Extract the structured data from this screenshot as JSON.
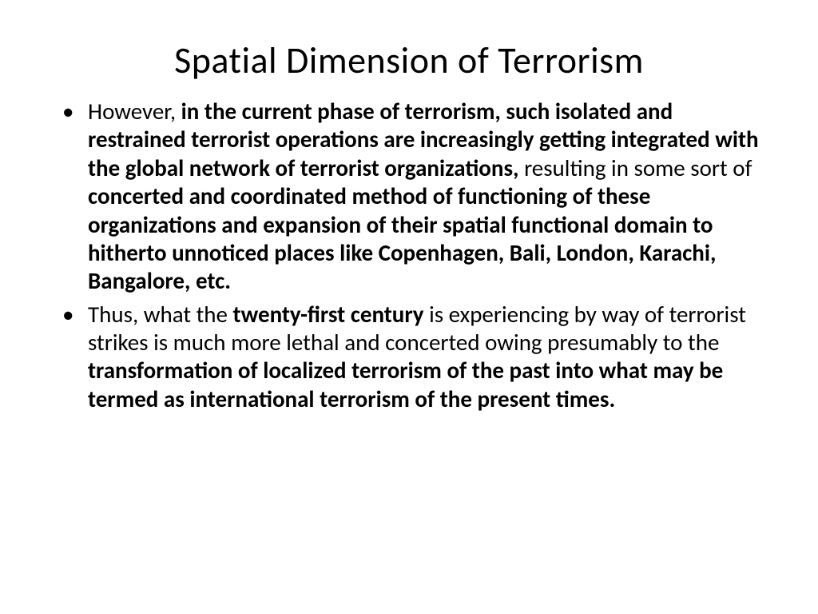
{
  "title": "Spatial Dimension of Terrorism",
  "bullet1": {
    "s1": "However, ",
    "s2": "in the current phase of terrorism, such isolated and restrained terrorist operations are increasingly getting integrated with the global network of terrorist organizations, ",
    "s3": "resulting in some sort of ",
    "s4": "concerted and coordinated method of functioning of these organizations and expansion of their spatial functional domain to hitherto unnoticed places like Copenhagen, Bali, London, Karachi, Bangalore, etc."
  },
  "bullet2": {
    "s1": "Thus, what the ",
    "s2": "twenty-first century ",
    "s3": "is experiencing by way of terrorist strikes is much more lethal and concerted owing presumably to the ",
    "s4": "transformation of localized terrorism of the past into what may be termed as international terrorism of the present times."
  }
}
